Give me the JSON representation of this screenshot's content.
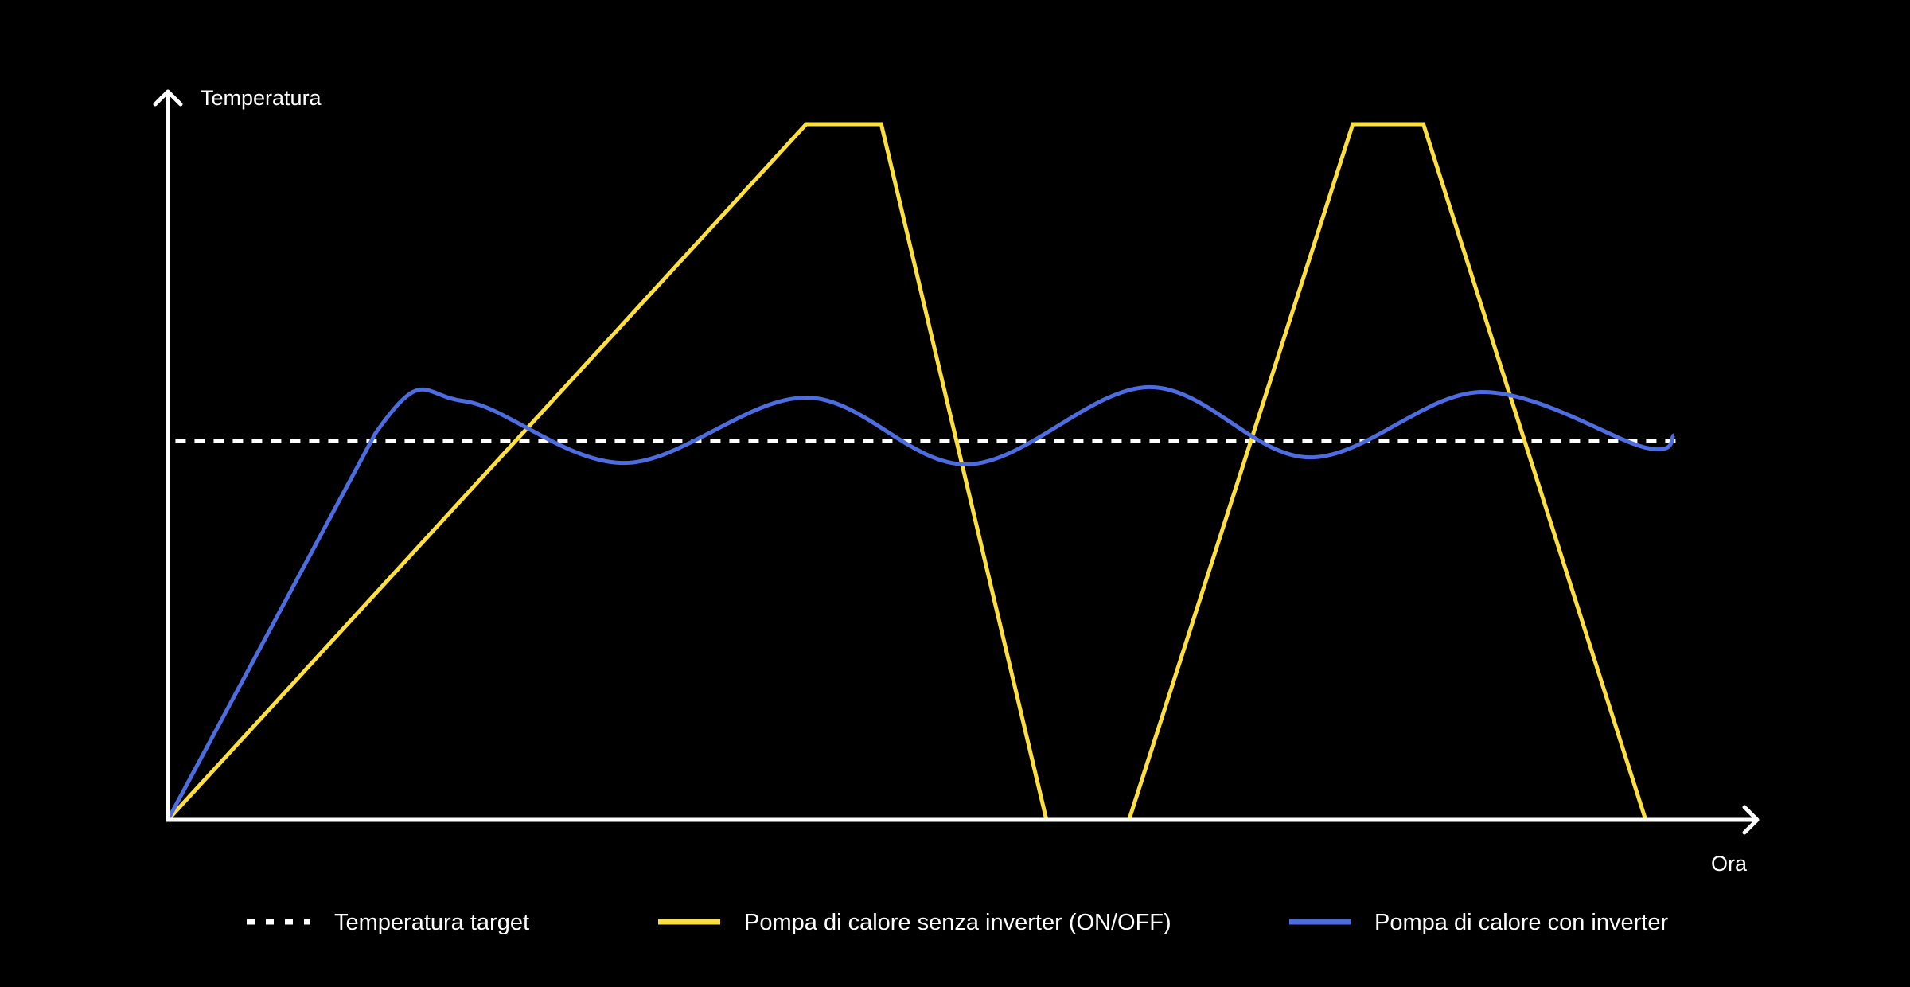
{
  "chart_data": {
    "type": "line",
    "title": "",
    "xlabel": "Ora",
    "ylabel": "Temperatura",
    "xlim": [
      0,
      100
    ],
    "ylim": [
      0,
      100
    ],
    "grid": false,
    "legend_position": "bottom",
    "series": [
      {
        "name": "Temperatura target",
        "color": "#ffffff",
        "style": "dashed",
        "x": [
          0.5,
          100.5
        ],
        "y": [
          54.5,
          54.5
        ]
      },
      {
        "name": "Pompa di calore senza inverter (ON/OFF)",
        "color": "#fde040",
        "style": "solid",
        "x": [
          0,
          42.5,
          47.5,
          58.5,
          64,
          78.9,
          83.6,
          98.4
        ],
        "y": [
          0,
          100,
          100,
          0,
          0,
          100,
          100,
          0
        ]
      },
      {
        "name": "Pompa di calore con inverter",
        "color": "#4d6ce0",
        "style": "solid",
        "x": [
          0,
          13.8,
          19.7,
          30.4,
          42.5,
          53.3,
          65.3,
          76.0,
          87.4,
          98.4,
          100.3
        ],
        "y": [
          0,
          55.5,
          60.2,
          51.3,
          60.7,
          51.1,
          62.2,
          52.1,
          61.5,
          53.5,
          55.3
        ]
      }
    ]
  }
}
